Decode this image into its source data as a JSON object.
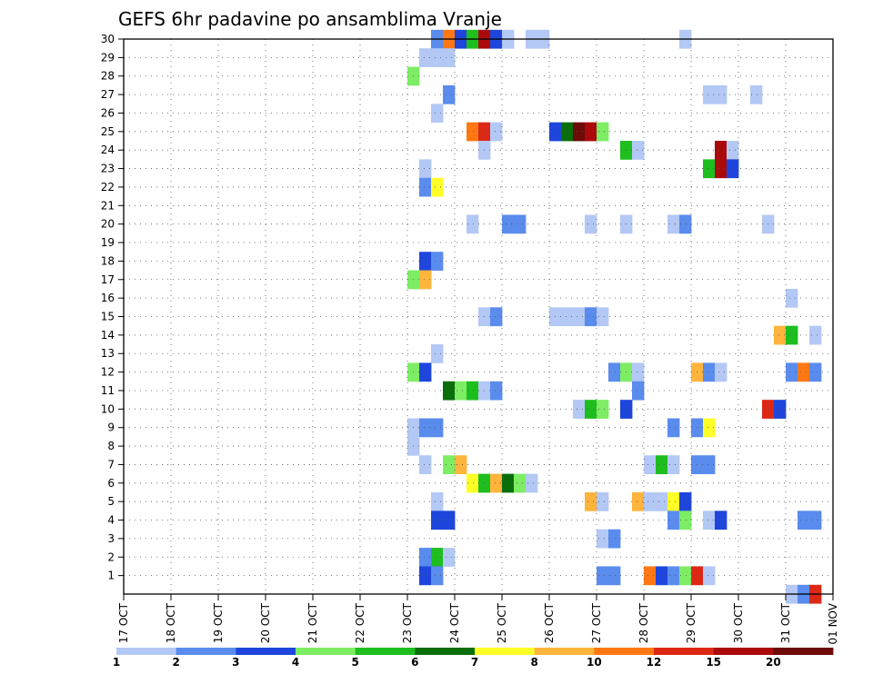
{
  "chart_data": {
    "type": "heatmap",
    "title": "GEFS 6hr padavine po ansamblima Vranje",
    "xlabel": "",
    "ylabel": "",
    "x_ticks": [
      "17 OCT",
      "18 OCT",
      "19 OCT",
      "20 OCT",
      "21 OCT",
      "22 OCT",
      "23 OCT",
      "24 OCT",
      "25 OCT",
      "26 OCT",
      "27 OCT",
      "28 OCT",
      "29 OCT",
      "30 OCT",
      "31 OCT",
      "01 NOV"
    ],
    "y_ticks": [
      "1",
      "2",
      "3",
      "4",
      "5",
      "6",
      "7",
      "8",
      "9",
      "10",
      "11",
      "12",
      "13",
      "14",
      "15",
      "16",
      "17",
      "18",
      "19",
      "20",
      "21",
      "22",
      "23",
      "24",
      "25",
      "26",
      "27",
      "28",
      "29",
      "30"
    ],
    "x_range_days": [
      0,
      15
    ],
    "y_range_members": [
      0,
      30
    ],
    "grid": true,
    "colorbar": {
      "position": "bottom",
      "tick_labels": [
        "1",
        "2",
        "3",
        "4",
        "5",
        "6",
        "7",
        "8",
        "10",
        "12",
        "15",
        "20"
      ],
      "colors": [
        "#b4c8f5",
        "#5a8ced",
        "#1e46dc",
        "#7ded64",
        "#1ebe1e",
        "#0a6e0a",
        "#ffff28",
        "#ffb43c",
        "#ff7814",
        "#dc2814",
        "#aa0a0a",
        "#6e0a0a"
      ]
    },
    "cells": [
      [
        23.5,
        30,
        2
      ],
      [
        23.75,
        30,
        9
      ],
      [
        24.0,
        30,
        3
      ],
      [
        24.25,
        30,
        5
      ],
      [
        24.5,
        30,
        11
      ],
      [
        24.75,
        30,
        3
      ],
      [
        25.0,
        30,
        1
      ],
      [
        25.5,
        30,
        1
      ],
      [
        25.75,
        30,
        1
      ],
      [
        28.75,
        30,
        1
      ],
      [
        23.25,
        29,
        1
      ],
      [
        23.5,
        29,
        1
      ],
      [
        23.75,
        29,
        1
      ],
      [
        23.0,
        28,
        4
      ],
      [
        23.75,
        27,
        2
      ],
      [
        29.25,
        27,
        1
      ],
      [
        29.5,
        27,
        1
      ],
      [
        30.25,
        27,
        1
      ],
      [
        23.5,
        26,
        1
      ],
      [
        24.25,
        25,
        9
      ],
      [
        24.5,
        25,
        10
      ],
      [
        24.75,
        25,
        1
      ],
      [
        26.0,
        25,
        3
      ],
      [
        26.25,
        25,
        6
      ],
      [
        26.5,
        25,
        12
      ],
      [
        26.75,
        25,
        11
      ],
      [
        27.0,
        25,
        4
      ],
      [
        24.5,
        24,
        1
      ],
      [
        27.5,
        24,
        5
      ],
      [
        27.75,
        24,
        1
      ],
      [
        29.5,
        24,
        11
      ],
      [
        29.75,
        24,
        1
      ],
      [
        23.25,
        23,
        1
      ],
      [
        29.25,
        23,
        5
      ],
      [
        29.5,
        23,
        11
      ],
      [
        29.75,
        23,
        3
      ],
      [
        23.25,
        22,
        2
      ],
      [
        23.5,
        22,
        7
      ],
      [
        24.25,
        20,
        1
      ],
      [
        25.0,
        20,
        2
      ],
      [
        25.25,
        20,
        2
      ],
      [
        26.75,
        20,
        1
      ],
      [
        27.5,
        20,
        1
      ],
      [
        28.5,
        20,
        1
      ],
      [
        28.75,
        20,
        2
      ],
      [
        30.5,
        20,
        1
      ],
      [
        23.25,
        18,
        3
      ],
      [
        23.5,
        18,
        2
      ],
      [
        23.0,
        17,
        4
      ],
      [
        23.25,
        17,
        8
      ],
      [
        31.0,
        16,
        1
      ],
      [
        24.5,
        15,
        1
      ],
      [
        24.75,
        15,
        2
      ],
      [
        26.0,
        15,
        1
      ],
      [
        26.25,
        15,
        1
      ],
      [
        26.5,
        15,
        1
      ],
      [
        26.75,
        15,
        2
      ],
      [
        27.0,
        15,
        1
      ],
      [
        30.75,
        14,
        8
      ],
      [
        31.0,
        14,
        5
      ],
      [
        31.5,
        14,
        1
      ],
      [
        23.5,
        13,
        1
      ],
      [
        23.0,
        12,
        4
      ],
      [
        23.25,
        12,
        3
      ],
      [
        27.25,
        12,
        2
      ],
      [
        27.5,
        12,
        4
      ],
      [
        27.75,
        12,
        1
      ],
      [
        29.0,
        12,
        8
      ],
      [
        29.25,
        12,
        2
      ],
      [
        29.5,
        12,
        1
      ],
      [
        31.0,
        12,
        2
      ],
      [
        31.25,
        12,
        9
      ],
      [
        31.5,
        12,
        2
      ],
      [
        23.75,
        11,
        6
      ],
      [
        24.0,
        11,
        4
      ],
      [
        24.25,
        11,
        5
      ],
      [
        24.5,
        11,
        1
      ],
      [
        24.75,
        11,
        2
      ],
      [
        27.75,
        11,
        2
      ],
      [
        26.5,
        10,
        1
      ],
      [
        26.75,
        10,
        5
      ],
      [
        27.0,
        10,
        4
      ],
      [
        27.5,
        10,
        3
      ],
      [
        30.5,
        10,
        10
      ],
      [
        30.75,
        10,
        3
      ],
      [
        23.0,
        9,
        1
      ],
      [
        23.25,
        9,
        2
      ],
      [
        23.5,
        9,
        2
      ],
      [
        28.5,
        9,
        2
      ],
      [
        29.0,
        9,
        2
      ],
      [
        29.25,
        9,
        7
      ],
      [
        23.0,
        8,
        1
      ],
      [
        23.25,
        7,
        1
      ],
      [
        23.75,
        7,
        4
      ],
      [
        24.0,
        7,
        8
      ],
      [
        28.0,
        7,
        1
      ],
      [
        28.25,
        7,
        5
      ],
      [
        28.5,
        7,
        1
      ],
      [
        29.0,
        7,
        2
      ],
      [
        29.25,
        7,
        2
      ],
      [
        24.25,
        6,
        7
      ],
      [
        24.5,
        6,
        5
      ],
      [
        24.75,
        6,
        8
      ],
      [
        25.0,
        6,
        6
      ],
      [
        25.25,
        6,
        4
      ],
      [
        25.5,
        6,
        1
      ],
      [
        23.5,
        5,
        1
      ],
      [
        26.75,
        5,
        8
      ],
      [
        27.0,
        5,
        1
      ],
      [
        27.75,
        5,
        8
      ],
      [
        28.0,
        5,
        1
      ],
      [
        28.25,
        5,
        1
      ],
      [
        28.5,
        5,
        7
      ],
      [
        28.75,
        5,
        3
      ],
      [
        23.5,
        4,
        3
      ],
      [
        23.75,
        4,
        3
      ],
      [
        28.5,
        4,
        2
      ],
      [
        28.75,
        4,
        4
      ],
      [
        29.25,
        4,
        1
      ],
      [
        29.5,
        4,
        3
      ],
      [
        31.25,
        4,
        2
      ],
      [
        31.5,
        4,
        2
      ],
      [
        27.0,
        3,
        1
      ],
      [
        27.25,
        3,
        2
      ],
      [
        23.25,
        2,
        2
      ],
      [
        23.5,
        2,
        5
      ],
      [
        23.75,
        2,
        1
      ],
      [
        23.25,
        1,
        3
      ],
      [
        23.5,
        1,
        2
      ],
      [
        27.0,
        1,
        2
      ],
      [
        27.25,
        1,
        2
      ],
      [
        28.0,
        1,
        9
      ],
      [
        28.25,
        1,
        3
      ],
      [
        28.5,
        1,
        2
      ],
      [
        28.75,
        1,
        4
      ],
      [
        29.0,
        1,
        10
      ],
      [
        29.25,
        1,
        1
      ],
      [
        31.0,
        0,
        1
      ],
      [
        31.25,
        0,
        2
      ],
      [
        31.5,
        0,
        10
      ]
    ]
  }
}
